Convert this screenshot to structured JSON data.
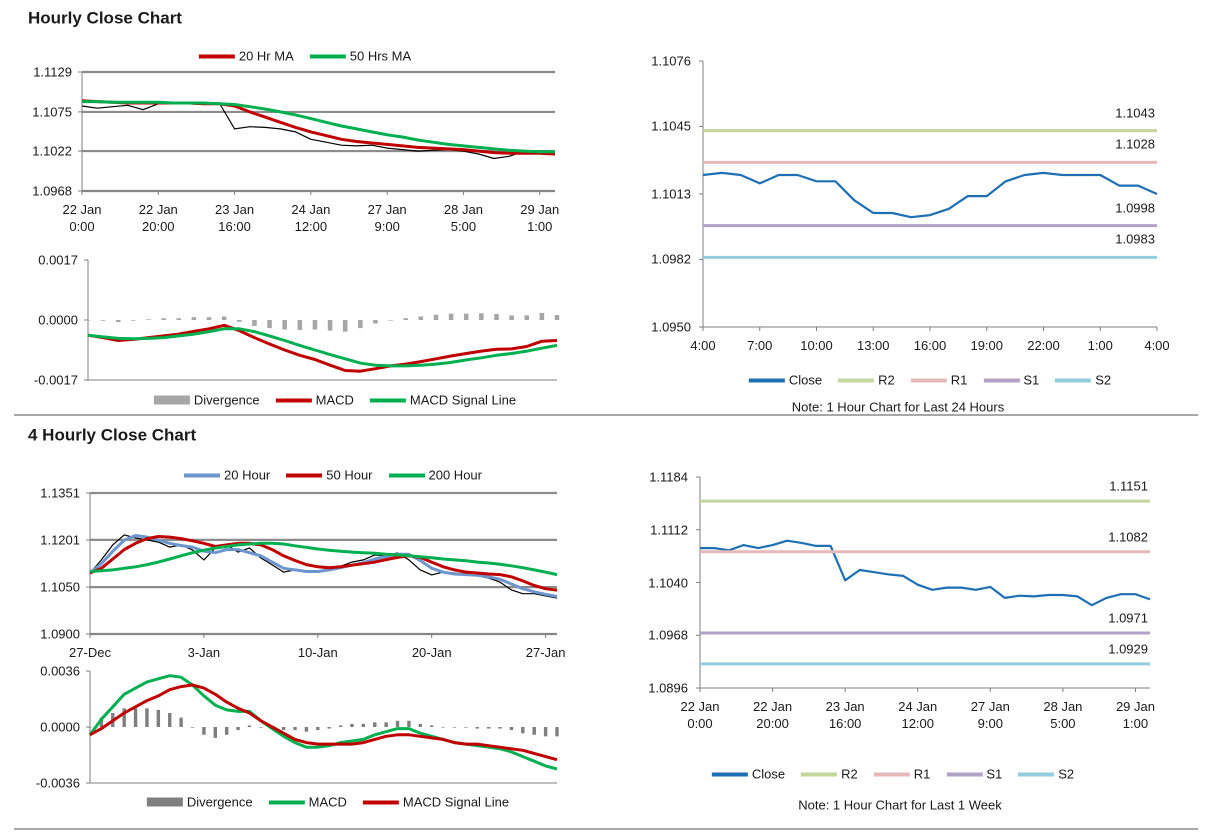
{
  "chart_data": [
    {
      "type": "line",
      "title": "Hourly Close Chart",
      "categories": [
        "22 Jan\n0:00",
        null,
        null,
        null,
        null,
        "22 Jan\n20:00",
        null,
        null,
        null,
        null,
        "23 Jan\n16:00",
        null,
        null,
        null,
        null,
        "24 Jan\n12:00",
        null,
        null,
        null,
        null,
        "27 Jan\n9:00",
        null,
        null,
        null,
        null,
        "28 Jan\n5:00",
        null,
        null,
        null,
        null,
        "29 Jan\n1:00",
        null
      ],
      "ylim": [
        1.0968,
        1.1129
      ],
      "yticks": [
        1.0968,
        1.1022,
        1.1075,
        1.1129
      ],
      "grid": true,
      "series": [
        {
          "color": "#000000",
          "values": [
            1.1083,
            1.108,
            1.1082,
            1.1084,
            1.1078,
            1.1086,
            1.1088,
            1.1086,
            1.1085,
            1.1087,
            1.1052,
            1.1055,
            1.1054,
            1.1052,
            1.1048,
            1.1038,
            1.1034,
            1.103,
            1.1029,
            1.103,
            1.1026,
            1.1024,
            1.1022,
            1.1023,
            1.1024,
            1.1022,
            1.1018,
            1.1012,
            1.1015,
            1.1022,
            1.1021,
            1.102
          ]
        },
        {
          "name": "20 Hr MA",
          "color": "#c00000",
          "values": [
            1.109,
            1.1089,
            1.1088,
            1.1087,
            1.1087,
            1.1087,
            1.1087,
            1.1087,
            1.1086,
            1.1086,
            1.1083,
            1.1075,
            1.1068,
            1.1061,
            1.1054,
            1.1048,
            1.1043,
            1.1038,
            1.1035,
            1.1033,
            1.1031,
            1.1029,
            1.1027,
            1.1026,
            1.1025,
            1.1024,
            1.1022,
            1.102,
            1.1019,
            1.1019,
            1.1019,
            1.1018
          ]
        },
        {
          "name": "50 Hrs MA",
          "color": "#00b050",
          "values": [
            1.1089,
            1.1089,
            1.1088,
            1.1088,
            1.1088,
            1.1088,
            1.1087,
            1.1087,
            1.1087,
            1.1086,
            1.1085,
            1.1082,
            1.1079,
            1.1075,
            1.1071,
            1.1066,
            1.1061,
            1.1056,
            1.1052,
            1.1048,
            1.1044,
            1.1041,
            1.1037,
            1.1034,
            1.1031,
            1.1029,
            1.1027,
            1.1025,
            1.1023,
            1.1022,
            1.1021,
            1.1021
          ]
        }
      ]
    },
    {
      "type": "line",
      "ylim": [
        -0.0017,
        0.0017
      ],
      "yticks": [
        -0.0017,
        {
          "value": 0,
          "label": "0.0000"
        },
        0.0017
      ],
      "series": [
        {
          "name": "Divergence",
          "type": "bar",
          "color": "#a6a6a6",
          "values": [
            0,
            -2e-05,
            -6e-05,
            -2e-05,
            2e-05,
            5e-05,
            5e-05,
            8e-05,
            8e-05,
            0.0001,
            -5e-05,
            -0.00017,
            -0.00023,
            -0.00027,
            -0.00028,
            -0.00027,
            -0.0003,
            -0.00033,
            -0.00023,
            -0.0001,
            0,
            5e-05,
            0.0001,
            0.00015,
            0.00018,
            0.00018,
            0.00019,
            0.00017,
            0.00013,
            0.00013,
            0.0002,
            0.00014
          ]
        },
        {
          "name": "MACD",
          "color": "#c00000",
          "values": [
            -0.00043,
            -0.0005,
            -0.00058,
            -0.00055,
            -0.0005,
            -0.00045,
            -0.0004,
            -0.00032,
            -0.00025,
            -0.00015,
            -0.0003,
            -0.0005,
            -0.00068,
            -0.00085,
            -0.001,
            -0.00112,
            -0.00128,
            -0.00143,
            -0.00145,
            -0.00138,
            -0.0013,
            -0.00125,
            -0.00118,
            -0.0011,
            -0.00102,
            -0.00095,
            -0.00088,
            -0.00083,
            -0.00082,
            -0.00075,
            -0.0006,
            -0.00058
          ]
        },
        {
          "name": "MACD Signal Line",
          "color": "#00b050",
          "values": [
            -0.00043,
            -0.00048,
            -0.00052,
            -0.00053,
            -0.00052,
            -0.0005,
            -0.00045,
            -0.0004,
            -0.00033,
            -0.00025,
            -0.00025,
            -0.00033,
            -0.00045,
            -0.00058,
            -0.00072,
            -0.00085,
            -0.00098,
            -0.0011,
            -0.00122,
            -0.00128,
            -0.0013,
            -0.0013,
            -0.00128,
            -0.00125,
            -0.0012,
            -0.00113,
            -0.00107,
            -0.001,
            -0.00095,
            -0.00088,
            -0.0008,
            -0.00072
          ]
        }
      ]
    },
    {
      "type": "line",
      "categories": [
        "4:00",
        null,
        null,
        "7:00",
        null,
        null,
        "10:00",
        null,
        null,
        "13:00",
        null,
        null,
        "16:00",
        null,
        null,
        "19:00",
        null,
        null,
        "22:00",
        null,
        null,
        "1:00",
        null,
        null,
        "4:00"
      ],
      "ylim": [
        1.095,
        1.1076
      ],
      "yticks": [
        {
          "value": 1.095,
          "label": "1.0950"
        },
        1.0982,
        1.1013,
        1.1045,
        1.1076
      ],
      "series": [
        {
          "name": "Close",
          "color": "#1f6fb4",
          "values": [
            1.1022,
            1.1023,
            1.1022,
            1.1018,
            1.1022,
            1.1022,
            1.1019,
            1.1019,
            1.101,
            1.1004,
            1.1004,
            1.1002,
            1.1003,
            1.1006,
            1.1012,
            1.1012,
            1.1019,
            1.1022,
            1.1023,
            1.1022,
            1.1022,
            1.1022,
            1.1017,
            1.1017,
            1.1013
          ]
        },
        {
          "name": "R2",
          "color": "#c3d69b",
          "value": 1.1043
        },
        {
          "name": "R1",
          "color": "#e6b9b8",
          "value": 1.1028
        },
        {
          "name": "S1",
          "color": "#b3a2c7",
          "value": 1.0998
        },
        {
          "name": "S2",
          "color": "#93cddd",
          "value": 1.0983
        }
      ],
      "note": "Note: 1 Hour Chart for Last 24 Hours"
    },
    {
      "type": "line",
      "title": "4 Hourly Close Chart",
      "categories": [
        "27-Dec",
        null,
        null,
        null,
        null,
        null,
        null,
        null,
        null,
        null,
        "3-Jan",
        null,
        null,
        null,
        null,
        null,
        null,
        null,
        null,
        null,
        "10-Jan",
        null,
        null,
        null,
        null,
        null,
        null,
        null,
        null,
        null,
        "20-Jan",
        null,
        null,
        null,
        null,
        null,
        null,
        null,
        null,
        null,
        "27-Jan",
        null
      ],
      "ylim": [
        1.09,
        1.1351
      ],
      "yticks": [
        {
          "value": 1.09,
          "label": "1.0900"
        },
        {
          "value": 1.105,
          "label": "1.1050"
        },
        1.1201,
        1.1351
      ],
      "grid": true,
      "series": [
        {
          "color": "#000000",
          "values": [
            1.1095,
            1.1137,
            1.1185,
            1.1217,
            1.1207,
            1.1201,
            1.1194,
            1.1178,
            1.1185,
            1.1169,
            1.1137,
            1.1175,
            1.1185,
            1.1162,
            1.1175,
            1.1143,
            1.1121,
            1.1098,
            1.1105,
            1.1098,
            1.1098,
            1.1111,
            1.1117,
            1.113,
            1.1137,
            1.1153,
            1.115,
            1.1159,
            1.1137,
            1.1105,
            1.1089,
            1.1098,
            1.1095,
            1.1089,
            1.1086,
            1.1079,
            1.1066,
            1.1041,
            1.1029,
            1.1029,
            1.1022,
            1.1015
          ]
        },
        {
          "name": "20 Hour",
          "color": "#6c96cd",
          "values": [
            1.1095,
            1.1125,
            1.1165,
            1.12,
            1.1215,
            1.121,
            1.12,
            1.119,
            1.1183,
            1.1178,
            1.1165,
            1.116,
            1.117,
            1.117,
            1.116,
            1.115,
            1.113,
            1.111,
            1.1105,
            1.11,
            1.11,
            1.1105,
            1.1112,
            1.112,
            1.1128,
            1.114,
            1.1148,
            1.1155,
            1.1155,
            1.1135,
            1.111,
            1.1098,
            1.1092,
            1.109,
            1.1088,
            1.1083,
            1.1075,
            1.106,
            1.1045,
            1.1035,
            1.1027,
            1.102
          ]
        },
        {
          "name": "50 Hour",
          "color": "#c00000",
          "values": [
            1.1095,
            1.111,
            1.114,
            1.117,
            1.119,
            1.1205,
            1.1212,
            1.121,
            1.1205,
            1.1198,
            1.119,
            1.118,
            1.1185,
            1.119,
            1.119,
            1.1185,
            1.117,
            1.115,
            1.1135,
            1.1122,
            1.1115,
            1.1112,
            1.1115,
            1.112,
            1.1125,
            1.113,
            1.1138,
            1.1145,
            1.115,
            1.1145,
            1.113,
            1.1115,
            1.1105,
            1.1098,
            1.1095,
            1.1092,
            1.109,
            1.1083,
            1.107,
            1.1055,
            1.1045,
            1.104
          ]
        },
        {
          "name": "200 Hour",
          "color": "#00b050",
          "values": [
            1.11,
            1.1102,
            1.1105,
            1.111,
            1.1115,
            1.1122,
            1.113,
            1.114,
            1.115,
            1.116,
            1.1168,
            1.1175,
            1.118,
            1.1185,
            1.1188,
            1.119,
            1.119,
            1.1188,
            1.1182,
            1.1177,
            1.1172,
            1.1168,
            1.1165,
            1.1162,
            1.116,
            1.1158,
            1.1155,
            1.1153,
            1.115,
            1.1147,
            1.1144,
            1.114,
            1.1137,
            1.1134,
            1.113,
            1.1127,
            1.1123,
            1.1118,
            1.1112,
            1.1105,
            1.1098,
            1.109
          ]
        }
      ]
    },
    {
      "type": "line",
      "ylim": [
        -0.0036,
        0.0036
      ],
      "yticks": [
        -0.0036,
        {
          "value": 0,
          "label": "0.0000"
        },
        0.0036
      ],
      "series": [
        {
          "name": "Divergence",
          "type": "bar",
          "color": "#7f7f7f",
          "values": [
            0,
            0.0006,
            0.0009,
            0.0012,
            0.0012,
            0.0012,
            0.0011,
            0.0009,
            0.0006,
            0,
            -0.0005,
            -0.0007,
            -0.0005,
            -0.0002,
            0.0001,
            0,
            -0.0001,
            -0.0002,
            -0.0002,
            -0.0003,
            -0.0002,
            -0.0001,
            0.0001,
            0.0002,
            0.0002,
            0.0003,
            0.0003,
            0.0004,
            0.0004,
            0.0002,
            0.0001,
            0,
            0,
            0,
            -0.0001,
            -0.0001,
            -0.0001,
            -0.0002,
            -0.0004,
            -0.0005,
            -0.0006,
            -0.0006
          ]
        },
        {
          "name": "MACD",
          "color": "#00b050",
          "values": [
            -0.0005,
            0.0005,
            0.0013,
            0.0021,
            0.0025,
            0.0029,
            0.0031,
            0.0033,
            0.0032,
            0.0027,
            0.002,
            0.0014,
            0.0011,
            0.001,
            0.001,
            0.0004,
            -0.0001,
            -0.0006,
            -0.001,
            -0.0013,
            -0.0013,
            -0.0012,
            -0.001,
            -0.0009,
            -0.0008,
            -0.0005,
            -0.0003,
            -0.0001,
            -0.0001,
            -0.0004,
            -0.0006,
            -0.0008,
            -0.001,
            -0.0011,
            -0.0012,
            -0.0013,
            -0.0014,
            -0.0016,
            -0.0019,
            -0.0022,
            -0.0025,
            -0.0027
          ]
        },
        {
          "name": "MACD Signal Line",
          "color": "#c00000",
          "values": [
            -0.0005,
            -0.0001,
            0.0004,
            0.0009,
            0.0013,
            0.0017,
            0.002,
            0.0024,
            0.0026,
            0.0027,
            0.0025,
            0.0021,
            0.0016,
            0.0012,
            0.0009,
            0.0004,
            0,
            -0.0004,
            -0.0008,
            -0.001,
            -0.0011,
            -0.0011,
            -0.0011,
            -0.0011,
            -0.001,
            -0.0008,
            -0.0006,
            -0.0005,
            -0.0005,
            -0.0006,
            -0.0007,
            -0.0008,
            -0.001,
            -0.0011,
            -0.0011,
            -0.0012,
            -0.0013,
            -0.0014,
            -0.0015,
            -0.0017,
            -0.0019,
            -0.0021
          ]
        }
      ]
    },
    {
      "type": "line",
      "categories": [
        "22 Jan\n0:00",
        null,
        null,
        null,
        null,
        "22 Jan\n20:00",
        null,
        null,
        null,
        null,
        "23 Jan\n16:00",
        null,
        null,
        null,
        null,
        "24 Jan\n12:00",
        null,
        null,
        null,
        null,
        "27 Jan\n9:00",
        null,
        null,
        null,
        null,
        "28 Jan\n5:00",
        null,
        null,
        null,
        null,
        "29 Jan\n1:00",
        null
      ],
      "ylim": [
        1.0896,
        1.1184
      ],
      "yticks": [
        1.0896,
        1.0968,
        {
          "value": 1.104,
          "label": "1.1040"
        },
        1.1112,
        1.1184
      ],
      "series": [
        {
          "name": "Close",
          "color": "#1f6fb4",
          "values": [
            1.1087,
            1.1087,
            1.1084,
            1.1091,
            1.1087,
            1.1091,
            1.1097,
            1.1094,
            1.109,
            1.109,
            1.1043,
            1.1057,
            1.1054,
            1.1051,
            1.1049,
            1.1037,
            1.103,
            1.1033,
            1.1033,
            1.103,
            1.1034,
            1.1019,
            1.1022,
            1.1021,
            1.1023,
            1.1023,
            1.1021,
            1.1009,
            1.1019,
            1.1024,
            1.1024,
            1.1017
          ]
        },
        {
          "name": "R2",
          "color": "#c3d69b",
          "value": 1.1151
        },
        {
          "name": "R1",
          "color": "#e6b9b8",
          "value": 1.1082
        },
        {
          "name": "S1",
          "color": "#b3a2c7",
          "value": 1.0971
        },
        {
          "name": "S2",
          "color": "#93cddd",
          "value": 1.0929
        }
      ],
      "note": "Note: 1 Hour Chart for Last 1 Week"
    }
  ]
}
